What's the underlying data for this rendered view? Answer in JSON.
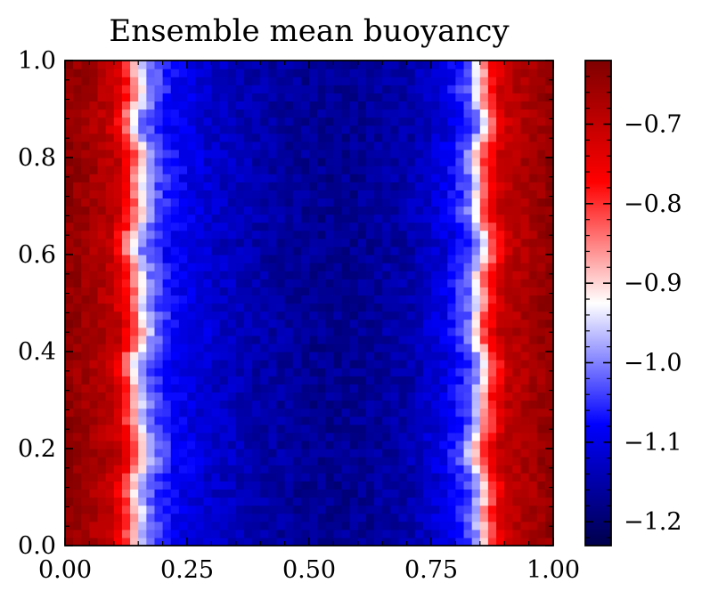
{
  "chart_data": {
    "type": "heatmap",
    "title": "Ensemble mean buoyancy",
    "xlabel": "",
    "ylabel": "",
    "xlim": [
      0.0,
      1.0
    ],
    "ylim": [
      0.0,
      1.0
    ],
    "grid": false,
    "x_ticks": [
      0.0,
      0.25,
      0.5,
      0.75,
      1.0
    ],
    "x_tick_labels": [
      "0.00",
      "0.25",
      "0.50",
      "0.75",
      "1.00"
    ],
    "y_ticks": [
      0.0,
      0.2,
      0.4,
      0.6,
      0.8,
      1.0
    ],
    "y_tick_labels": [
      "0.0",
      "0.2",
      "0.4",
      "0.6",
      "0.8",
      "1.0"
    ],
    "colormap": "seismic",
    "colorbar": {
      "vmin": -1.23,
      "vmax": -0.62,
      "ticks": [
        -0.7,
        -0.8,
        -0.9,
        -1.0,
        -1.1,
        -1.2
      ],
      "tick_labels": [
        "−0.7",
        "−0.8",
        "−0.9",
        "−1.0",
        "−1.1",
        "−1.2"
      ]
    },
    "field_profile": {
      "description_of_values": "buoyancy vs x, roughly uniform in y",
      "x": [
        0.0,
        0.05,
        0.1,
        0.13,
        0.15,
        0.17,
        0.22,
        0.3,
        0.4,
        0.5,
        0.6,
        0.7,
        0.78,
        0.83,
        0.85,
        0.87,
        0.9,
        0.95,
        1.0
      ],
      "value": [
        -0.64,
        -0.66,
        -0.7,
        -0.8,
        -0.9,
        -1.0,
        -1.08,
        -1.12,
        -1.15,
        -1.17,
        -1.17,
        -1.15,
        -1.1,
        -1.02,
        -0.9,
        -0.8,
        -0.7,
        -0.67,
        -0.64
      ]
    },
    "colors": {
      "cmap_stops": [
        "#00004c",
        "#0000ff",
        "#ffffff",
        "#ff0000",
        "#7f0000"
      ]
    }
  }
}
